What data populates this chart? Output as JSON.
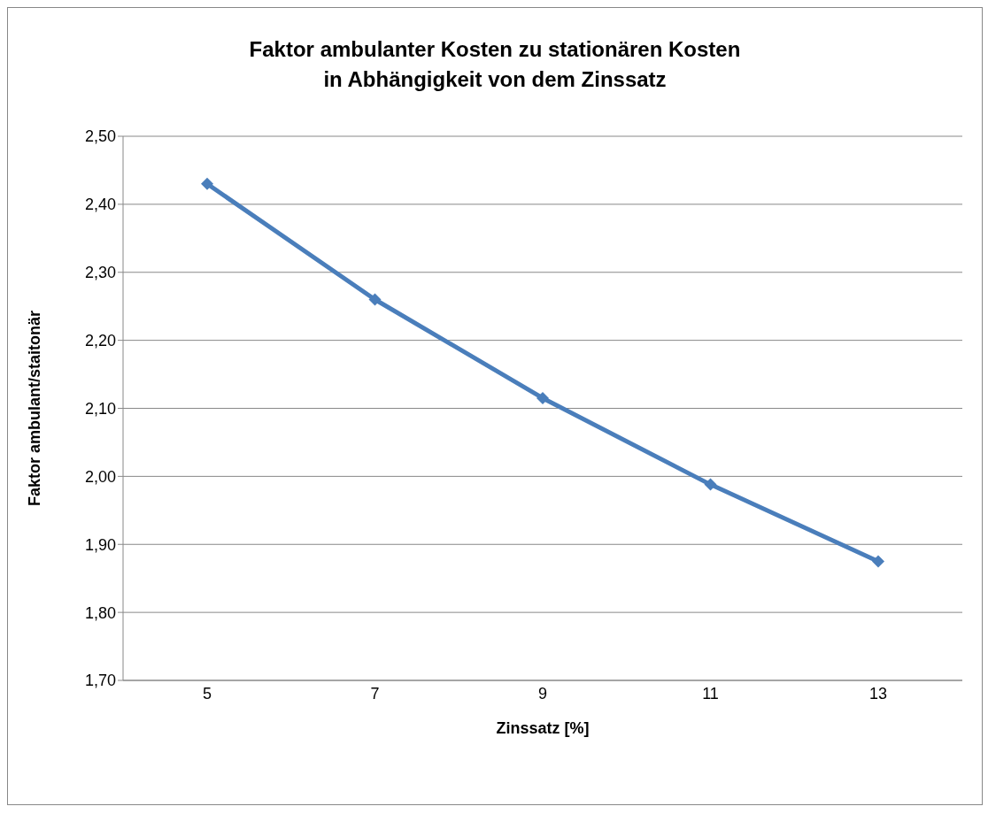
{
  "chart_data": {
    "type": "line",
    "title": "Faktor ambulanter Kosten zu stationären Kosten\nin Abhängigkeit von dem Zinssatz",
    "xlabel": "Zinssatz [%]",
    "ylabel": "Faktor ambulant/staitonär",
    "categories": [
      "5",
      "7",
      "9",
      "11",
      "13"
    ],
    "series": [
      {
        "color": "#4a7ebb",
        "values": [
          2.43,
          2.26,
          2.115,
          1.988,
          1.875
        ]
      }
    ],
    "ylim": [
      1.7,
      2.5
    ],
    "yticks": [
      {
        "value": 1.7,
        "label": "1,70"
      },
      {
        "value": 1.8,
        "label": "1,80"
      },
      {
        "value": 1.9,
        "label": "1,90"
      },
      {
        "value": 2.0,
        "label": "2,00"
      },
      {
        "value": 2.1,
        "label": "2,10"
      },
      {
        "value": 2.2,
        "label": "2,20"
      },
      {
        "value": 2.3,
        "label": "2,30"
      },
      {
        "value": 2.4,
        "label": "2,40"
      },
      {
        "value": 2.5,
        "label": "2,50"
      }
    ],
    "grid": "y",
    "legend": false,
    "marker": "diamond",
    "line_style": "solid"
  }
}
